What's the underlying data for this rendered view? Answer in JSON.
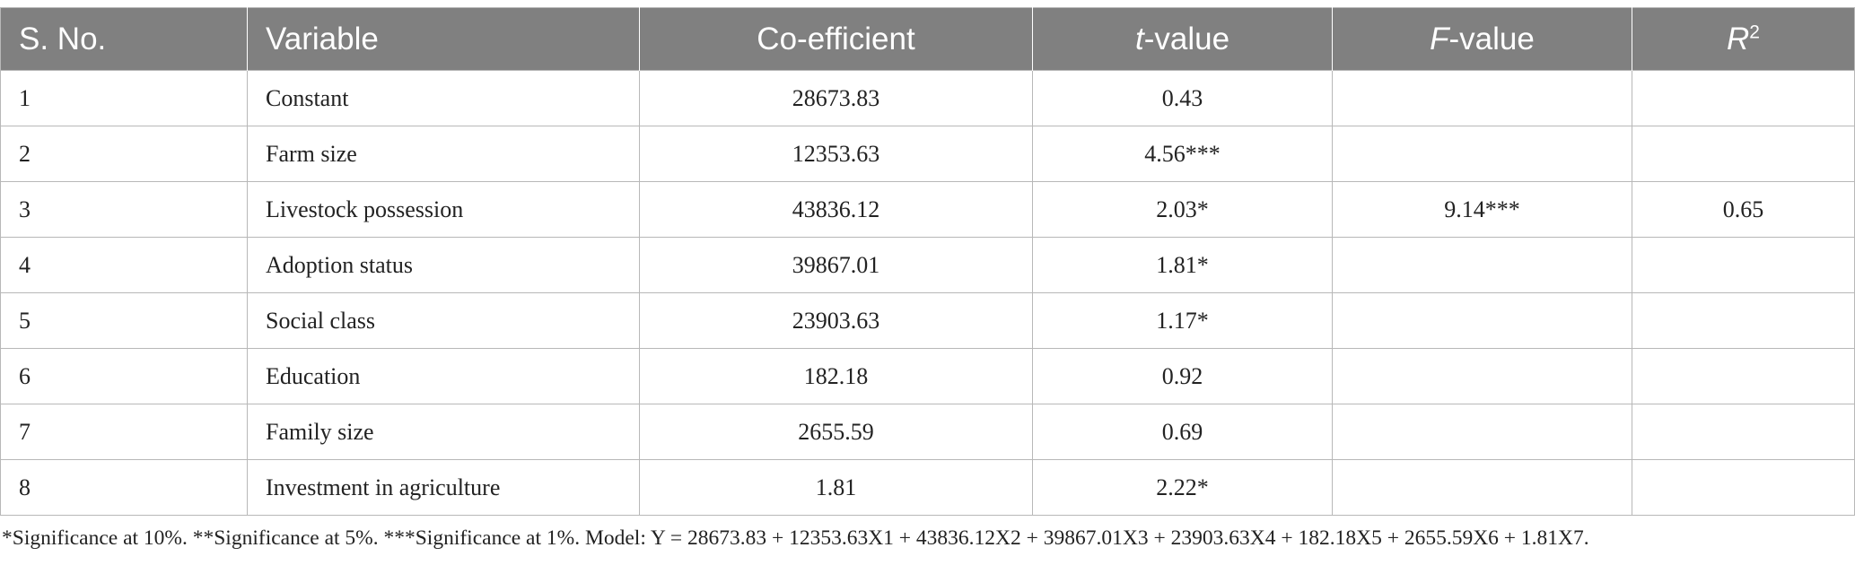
{
  "table": {
    "headers": {
      "sno": "S. No.",
      "variable": "Variable",
      "coefficient": "Co-efficient",
      "t_italic": "t",
      "t_rest": "-value",
      "f_italic": "F",
      "f_rest": "-value",
      "r_italic": "R",
      "r_sup": "2"
    },
    "rows": [
      {
        "sno": "1",
        "variable": "Constant",
        "coefficient": "28673.83",
        "t_value": "0.43"
      },
      {
        "sno": "2",
        "variable": "Farm size",
        "coefficient": "12353.63",
        "t_value": "4.56***"
      },
      {
        "sno": "3",
        "variable": "Livestock possession",
        "coefficient": "43836.12",
        "t_value": "2.03*"
      },
      {
        "sno": "4",
        "variable": "Adoption status",
        "coefficient": "39867.01",
        "t_value": "1.81*"
      },
      {
        "sno": "5",
        "variable": "Social class",
        "coefficient": "23903.63",
        "t_value": "1.17*"
      },
      {
        "sno": "6",
        "variable": "Education",
        "coefficient": "182.18",
        "t_value": "0.92"
      },
      {
        "sno": "7",
        "variable": "Family size",
        "coefficient": "2655.59",
        "t_value": "0.69"
      },
      {
        "sno": "8",
        "variable": "Investment in agriculture",
        "coefficient": "1.81",
        "t_value": "2.22*"
      }
    ],
    "f_value": "9.14***",
    "r_squared": "0.65"
  },
  "footnote": "*Significance at 10%. **Significance at 5%. ***Significance at 1%. Model: Y = 28673.83 + 12353.63X1 + 43836.12X2 + 39867.01X3 + 23903.63X4 + 182.18X5 + 2655.59X6 + 1.81X7."
}
